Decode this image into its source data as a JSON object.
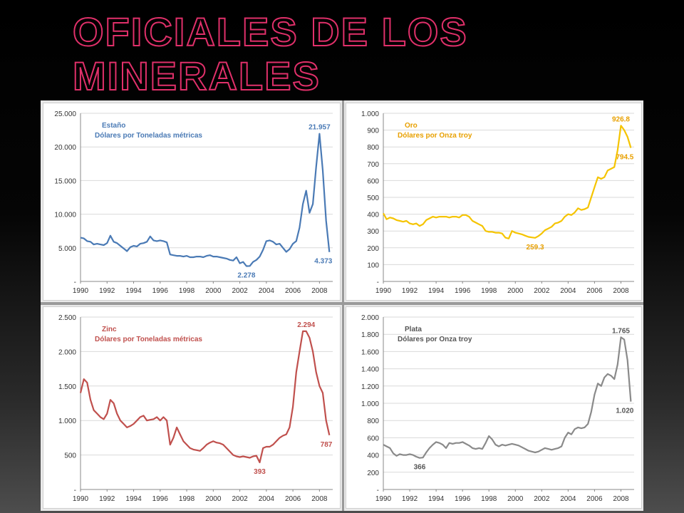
{
  "slide": {
    "title_line1": "OFICIALES DE LOS",
    "title_line2": "MINERALES"
  },
  "chart_data": [
    {
      "type": "line",
      "title": "Estaño",
      "subtitle": "Dólares por Toneladas métricas",
      "color": "#4a7ab5",
      "title_color": "#4a7ab5",
      "ylim": [
        0,
        25000
      ],
      "yticks": [
        0,
        5000,
        10000,
        15000,
        20000,
        25000
      ],
      "ytick_labels": [
        "-",
        "5.000",
        "10.000",
        "15.000",
        "20.000",
        "25.000"
      ],
      "xlim": [
        1990,
        2009
      ],
      "xtick_labels": [
        "1990",
        "1992",
        "1994",
        "1996",
        "1998",
        "2000",
        "2002",
        "2004",
        "2006",
        "2008"
      ],
      "grid": true,
      "series": [
        {
          "x": [
            1990.0,
            1990.25,
            1990.5,
            1990.75,
            1991.0,
            1991.25,
            1991.5,
            1991.75,
            1992.0,
            1992.25,
            1992.5,
            1992.75,
            1993.0,
            1993.25,
            1993.5,
            1993.75,
            1994.0,
            1994.25,
            1994.5,
            1994.75,
            1995.0,
            1995.25,
            1995.5,
            1995.75,
            1996.0,
            1996.25,
            1996.5,
            1996.75,
            1997.0,
            1997.25,
            1997.5,
            1997.75,
            1998.0,
            1998.25,
            1998.5,
            1998.75,
            1999.0,
            1999.25,
            1999.5,
            1999.75,
            2000.0,
            2000.25,
            2000.5,
            2000.75,
            2001.0,
            2001.25,
            2001.5,
            2001.75,
            2002.0,
            2002.25,
            2002.5,
            2002.75,
            2003.0,
            2003.25,
            2003.5,
            2003.75,
            2004.0,
            2004.25,
            2004.5,
            2004.75,
            2005.0,
            2005.25,
            2005.5,
            2005.75,
            2006.0,
            2006.25,
            2006.5,
            2006.75,
            2007.0,
            2007.25,
            2007.5,
            2007.75,
            2008.0,
            2008.25,
            2008.5,
            2008.75
          ],
          "y": [
            6500,
            6400,
            6000,
            5900,
            5500,
            5600,
            5500,
            5400,
            5700,
            6800,
            5900,
            5700,
            5300,
            4900,
            4500,
            5100,
            5300,
            5200,
            5600,
            5700,
            5900,
            6700,
            6100,
            6000,
            6100,
            6000,
            5800,
            4000,
            3900,
            3800,
            3800,
            3700,
            3800,
            3600,
            3600,
            3700,
            3700,
            3600,
            3800,
            3900,
            3700,
            3700,
            3600,
            3500,
            3400,
            3200,
            3100,
            3600,
            2700,
            2900,
            2278,
            2300,
            2900,
            3200,
            3700,
            4700,
            6000,
            6100,
            5900,
            5500,
            5600,
            5000,
            4400,
            4800,
            5600,
            6000,
            8000,
            11500,
            13500,
            10200,
            11500,
            17000,
            21957,
            16500,
            9000,
            4373
          ]
        }
      ],
      "annotations": [
        {
          "x": 2008.0,
          "y": 21957,
          "text": "21.957"
        },
        {
          "x": 2002.5,
          "y": 2278,
          "text": "2.278"
        },
        {
          "x": 2008.75,
          "y": 4373,
          "text": "4.373"
        }
      ]
    },
    {
      "type": "line",
      "title": "Oro",
      "subtitle": "Dólares por Onza troy",
      "color": "#f5c400",
      "title_color": "#e8a000",
      "ylim": [
        0,
        1000
      ],
      "yticks": [
        0,
        100,
        200,
        300,
        400,
        500,
        600,
        700,
        800,
        900,
        1000
      ],
      "ytick_labels": [
        "-",
        "100",
        "200",
        "300",
        "400",
        "500",
        "600",
        "700",
        "800",
        "900",
        "1.000"
      ],
      "xlim": [
        1990,
        2009
      ],
      "xtick_labels": [
        "1990",
        "1992",
        "1994",
        "1996",
        "1998",
        "2000",
        "2002",
        "2004",
        "2006",
        "2008"
      ],
      "grid": true,
      "series": [
        {
          "x": [
            1990.0,
            1990.25,
            1990.5,
            1990.75,
            1991.0,
            1991.25,
            1991.5,
            1991.75,
            1992.0,
            1992.25,
            1992.5,
            1992.75,
            1993.0,
            1993.25,
            1993.5,
            1993.75,
            1994.0,
            1994.25,
            1994.5,
            1994.75,
            1995.0,
            1995.25,
            1995.5,
            1995.75,
            1996.0,
            1996.25,
            1996.5,
            1996.75,
            1997.0,
            1997.25,
            1997.5,
            1997.75,
            1998.0,
            1998.25,
            1998.5,
            1998.75,
            1999.0,
            1999.25,
            1999.5,
            1999.75,
            2000.0,
            2000.25,
            2000.5,
            2000.75,
            2001.0,
            2001.25,
            2001.5,
            2001.75,
            2002.0,
            2002.25,
            2002.5,
            2002.75,
            2003.0,
            2003.25,
            2003.5,
            2003.75,
            2004.0,
            2004.25,
            2004.5,
            2004.75,
            2005.0,
            2005.25,
            2005.5,
            2005.75,
            2006.0,
            2006.25,
            2006.5,
            2006.75,
            2007.0,
            2007.25,
            2007.5,
            2007.75,
            2008.0,
            2008.25,
            2008.5,
            2008.75
          ],
          "y": [
            405,
            370,
            380,
            375,
            365,
            360,
            355,
            360,
            345,
            340,
            345,
            330,
            340,
            365,
            375,
            385,
            380,
            385,
            385,
            385,
            380,
            385,
            385,
            380,
            395,
            395,
            385,
            360,
            350,
            340,
            330,
            300,
            295,
            295,
            290,
            290,
            285,
            260,
            255,
            300,
            290,
            285,
            280,
            272,
            265,
            262,
            259.3,
            270,
            285,
            305,
            315,
            325,
            345,
            350,
            360,
            385,
            400,
            395,
            410,
            435,
            425,
            430,
            440,
            500,
            560,
            620,
            610,
            620,
            660,
            670,
            680,
            780,
            926.8,
            900,
            860,
            794.5
          ]
        }
      ],
      "annotations": [
        {
          "x": 2008.0,
          "y": 926.8,
          "text": "926.8"
        },
        {
          "x": 2001.5,
          "y": 259.3,
          "text": "259.3"
        },
        {
          "x": 2008.75,
          "y": 794.5,
          "text": "794.5"
        }
      ]
    },
    {
      "type": "line",
      "title": "Zinc",
      "subtitle": "Dólares por Toneladas métricas",
      "color": "#c0504d",
      "title_color": "#c0504d",
      "ylim": [
        0,
        2500
      ],
      "yticks": [
        0,
        500,
        1000,
        1500,
        2000,
        2500
      ],
      "ytick_labels": [
        "-",
        "500",
        "1.000",
        "1.500",
        "2.000",
        "2.500"
      ],
      "xlim": [
        1990,
        2009
      ],
      "xtick_labels": [
        "1990",
        "1992",
        "1994",
        "1996",
        "1998",
        "2000",
        "2002",
        "2004",
        "2006",
        "2008"
      ],
      "grid": true,
      "series": [
        {
          "x": [
            1990.0,
            1990.25,
            1990.5,
            1990.75,
            1991.0,
            1991.25,
            1991.5,
            1991.75,
            1992.0,
            1992.25,
            1992.5,
            1992.75,
            1993.0,
            1993.25,
            1993.5,
            1993.75,
            1994.0,
            1994.25,
            1994.5,
            1994.75,
            1995.0,
            1995.25,
            1995.5,
            1995.75,
            1996.0,
            1996.25,
            1996.5,
            1996.75,
            1997.0,
            1997.25,
            1997.5,
            1997.75,
            1998.0,
            1998.25,
            1998.5,
            1998.75,
            1999.0,
            1999.25,
            1999.5,
            1999.75,
            2000.0,
            2000.25,
            2000.5,
            2000.75,
            2001.0,
            2001.25,
            2001.5,
            2001.75,
            2002.0,
            2002.25,
            2002.5,
            2002.75,
            2003.0,
            2003.25,
            2003.5,
            2003.75,
            2004.0,
            2004.25,
            2004.5,
            2004.75,
            2005.0,
            2005.25,
            2005.5,
            2005.75,
            2006.0,
            2006.25,
            2006.5,
            2006.75,
            2007.0,
            2007.25,
            2007.5,
            2007.75,
            2008.0,
            2008.25,
            2008.5,
            2008.75
          ],
          "y": [
            1400,
            1600,
            1550,
            1300,
            1150,
            1100,
            1050,
            1020,
            1100,
            1300,
            1250,
            1100,
            1000,
            950,
            900,
            920,
            950,
            1000,
            1050,
            1070,
            1000,
            1010,
            1020,
            1050,
            1000,
            1050,
            1000,
            650,
            750,
            900,
            800,
            700,
            650,
            600,
            580,
            570,
            560,
            600,
            650,
            680,
            700,
            680,
            670,
            650,
            600,
            550,
            500,
            480,
            470,
            480,
            470,
            460,
            480,
            490,
            393,
            600,
            620,
            620,
            650,
            700,
            750,
            780,
            800,
            900,
            1200,
            1700,
            2000,
            2294,
            2294,
            2200,
            2000,
            1700,
            1500,
            1400,
            1000,
            787
          ]
        }
      ],
      "annotations": [
        {
          "x": 2007.0,
          "y": 2294,
          "text": "2.294"
        },
        {
          "x": 2003.5,
          "y": 393,
          "text": "393"
        },
        {
          "x": 2008.75,
          "y": 787,
          "text": "787"
        }
      ]
    },
    {
      "type": "line",
      "title": "Plata",
      "subtitle": "Dólares por Onza troy",
      "color": "#8a8a8a",
      "title_color": "#555555",
      "ylim": [
        0,
        2000
      ],
      "yticks": [
        0,
        200,
        400,
        600,
        800,
        1000,
        1200,
        1400,
        1600,
        1800,
        2000
      ],
      "ytick_labels": [
        "-",
        "200",
        "400",
        "600",
        "800",
        "1.000",
        "1.200",
        "1.400",
        "1.600",
        "1.800",
        "2.000"
      ],
      "xlim": [
        1990,
        2009
      ],
      "xtick_labels": [
        "1990",
        "1992",
        "1994",
        "1996",
        "1998",
        "2000",
        "2002",
        "2004",
        "2006",
        "2008"
      ],
      "grid": true,
      "series": [
        {
          "x": [
            1990.0,
            1990.25,
            1990.5,
            1990.75,
            1991.0,
            1991.25,
            1991.5,
            1991.75,
            1992.0,
            1992.25,
            1992.5,
            1992.75,
            1993.0,
            1993.25,
            1993.5,
            1993.75,
            1994.0,
            1994.25,
            1994.5,
            1994.75,
            1995.0,
            1995.25,
            1995.5,
            1995.75,
            1996.0,
            1996.25,
            1996.5,
            1996.75,
            1997.0,
            1997.25,
            1997.5,
            1997.75,
            1998.0,
            1998.25,
            1998.5,
            1998.75,
            1999.0,
            1999.25,
            1999.5,
            1999.75,
            2000.0,
            2000.25,
            2000.5,
            2000.75,
            2001.0,
            2001.25,
            2001.5,
            2001.75,
            2002.0,
            2002.25,
            2002.5,
            2002.75,
            2003.0,
            2003.25,
            2003.5,
            2003.75,
            2004.0,
            2004.25,
            2004.5,
            2004.75,
            2005.0,
            2005.25,
            2005.5,
            2005.75,
            2006.0,
            2006.25,
            2006.5,
            2006.75,
            2007.0,
            2007.25,
            2007.5,
            2007.75,
            2008.0,
            2008.25,
            2008.5,
            2008.75
          ],
          "y": [
            520,
            500,
            480,
            420,
            390,
            410,
            400,
            400,
            410,
            400,
            380,
            366,
            370,
            430,
            480,
            520,
            550,
            540,
            520,
            480,
            540,
            530,
            540,
            540,
            550,
            530,
            510,
            480,
            470,
            480,
            470,
            540,
            620,
            580,
            520,
            500,
            520,
            510,
            520,
            530,
            520,
            510,
            490,
            470,
            450,
            440,
            430,
            440,
            460,
            480,
            470,
            460,
            470,
            480,
            500,
            600,
            660,
            640,
            700,
            720,
            710,
            720,
            760,
            900,
            1100,
            1230,
            1200,
            1300,
            1340,
            1320,
            1280,
            1450,
            1765,
            1740,
            1500,
            1020
          ]
        }
      ],
      "annotations": [
        {
          "x": 2008.0,
          "y": 1765,
          "text": "1.765"
        },
        {
          "x": 1992.75,
          "y": 366,
          "text": "366"
        },
        {
          "x": 2008.75,
          "y": 1020,
          "text": "1.020"
        }
      ]
    }
  ]
}
